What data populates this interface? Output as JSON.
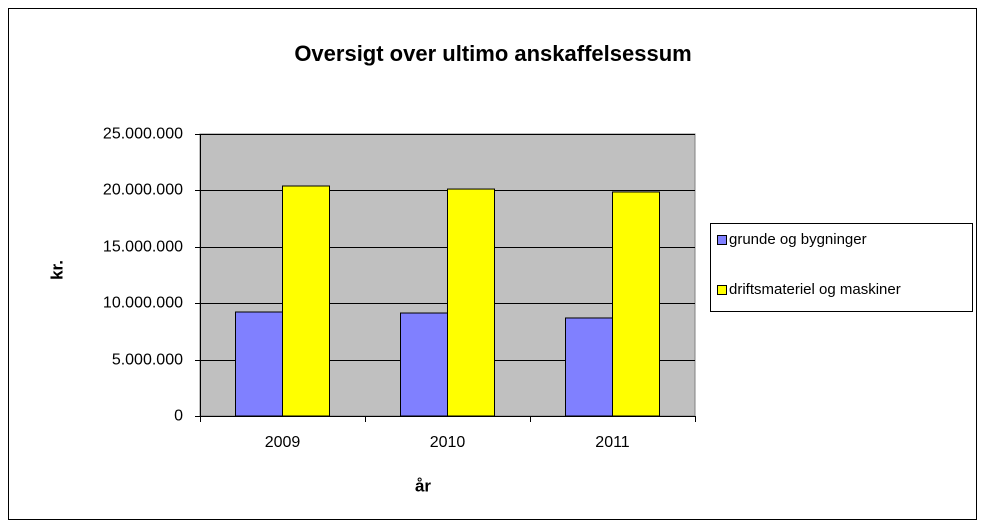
{
  "chart_data": {
    "type": "bar",
    "title": "Oversigt  over ultimo anskaffelsessum",
    "x_label": "år",
    "y_label": "kr.",
    "categories": [
      "2009",
      "2010",
      "2011"
    ],
    "series": [
      {
        "name": "grunde og bygninger",
        "color": "#8080ff",
        "values": [
          9220000,
          9130000,
          8690000
        ]
      },
      {
        "name": "driftsmateriel og maskiner",
        "color": "#ffff00",
        "values": [
          20390000,
          20120000,
          19860000
        ]
      }
    ],
    "ylim": [
      0,
      25000000
    ],
    "yticks": [
      {
        "value": 0,
        "label": "0"
      },
      {
        "value": 5000000,
        "label": "5.000.000"
      },
      {
        "value": 10000000,
        "label": "10.000.000"
      },
      {
        "value": 15000000,
        "label": "15.000.000"
      },
      {
        "value": 20000000,
        "label": "20.000.000"
      },
      {
        "value": 25000000,
        "label": "25.000.000"
      }
    ],
    "grid": true,
    "legend": "right"
  }
}
